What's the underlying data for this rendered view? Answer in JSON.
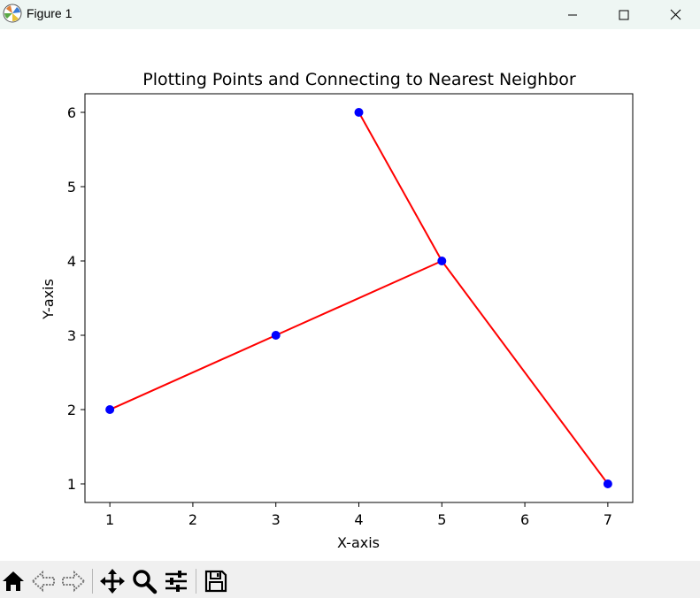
{
  "window": {
    "title": "Figure 1",
    "icons": [
      "matplotlib-logo-icon",
      "minimize-icon",
      "maximize-icon",
      "close-icon"
    ]
  },
  "toolbar": {
    "buttons": [
      "home-icon",
      "back-icon",
      "forward-icon",
      "pan-icon",
      "zoom-icon",
      "configure-subplots-icon",
      "save-icon"
    ]
  },
  "chart_data": {
    "type": "scatter",
    "title": "Plotting Points and Connecting to Nearest Neighbor",
    "xlabel": "X-axis",
    "ylabel": "Y-axis",
    "xlim": [
      0.7,
      7.3
    ],
    "ylim": [
      0.75,
      6.25
    ],
    "xticks": [
      1,
      2,
      3,
      4,
      5,
      6,
      7
    ],
    "yticks": [
      1,
      2,
      3,
      4,
      5,
      6
    ],
    "points": [
      {
        "x": 1,
        "y": 2
      },
      {
        "x": 3,
        "y": 3
      },
      {
        "x": 4,
        "y": 6
      },
      {
        "x": 5,
        "y": 4
      },
      {
        "x": 7,
        "y": 1
      }
    ],
    "connections": [
      {
        "from": [
          1,
          2
        ],
        "to": [
          3,
          3
        ]
      },
      {
        "from": [
          3,
          3
        ],
        "to": [
          5,
          4
        ]
      },
      {
        "from": [
          4,
          6
        ],
        "to": [
          5,
          4
        ]
      },
      {
        "from": [
          5,
          4
        ],
        "to": [
          7,
          1
        ]
      }
    ],
    "point_color": "#0000ff",
    "line_color": "#ff0000",
    "grid": false
  }
}
